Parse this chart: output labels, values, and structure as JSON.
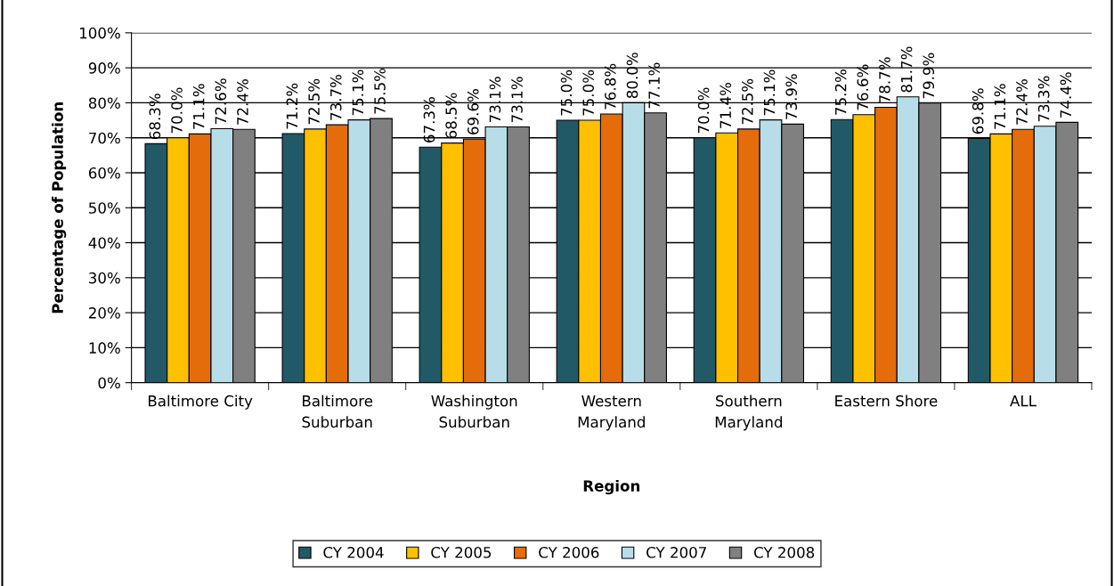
{
  "chart_data": {
    "type": "bar",
    "xlabel": "Region",
    "ylabel": "Percentage of Population",
    "categories": [
      "Baltimore City",
      "Baltimore\nSuburban",
      "Washington\nSuburban",
      "Western\nMaryland",
      "Southern\nMaryland",
      "Eastern Shore",
      "ALL"
    ],
    "series": [
      {
        "name": "CY 2004",
        "color": "#215967",
        "values": [
          68.3,
          71.2,
          67.3,
          75.0,
          70.0,
          75.2,
          69.8
        ],
        "value_labels": [
          "68.3%",
          "71.2%",
          "67.3%",
          "75.0%",
          "70.0%",
          "75.2%",
          "69.8%"
        ]
      },
      {
        "name": "CY 2005",
        "color": "#ffc000",
        "values": [
          70.0,
          72.5,
          68.5,
          75.0,
          71.4,
          76.6,
          71.1
        ],
        "value_labels": [
          "70.0%",
          "72.5%",
          "68.5%",
          "75.0%",
          "71.4%",
          "76.6%",
          "71.1%"
        ]
      },
      {
        "name": "CY 2006",
        "color": "#e46c0a",
        "values": [
          71.1,
          73.7,
          69.6,
          76.8,
          72.5,
          78.7,
          72.4
        ],
        "value_labels": [
          "71.1%",
          "73.7%",
          "69.6%",
          "76.8%",
          "72.5%",
          "78.7%",
          "72.4%"
        ]
      },
      {
        "name": "CY 2007",
        "color": "#b7dee8",
        "values": [
          72.6,
          75.1,
          73.1,
          80.0,
          75.1,
          81.7,
          73.3
        ],
        "value_labels": [
          "72.6%",
          "75.1%",
          "73.1%",
          "80.0%",
          "75.1%",
          "81.7%",
          "73.3%"
        ]
      },
      {
        "name": "CY 2008",
        "color": "#808080",
        "values": [
          72.4,
          75.5,
          73.1,
          77.1,
          73.9,
          79.9,
          74.4
        ],
        "value_labels": [
          "72.4%",
          "75.5%",
          "73.1%",
          "77.1%",
          "73.9%",
          "79.9%",
          "74.4%"
        ]
      }
    ],
    "ylim": [
      0,
      100
    ],
    "yticks": [
      {
        "value": 0,
        "label": "0%"
      },
      {
        "value": 10,
        "label": "10%"
      },
      {
        "value": 20,
        "label": "20%"
      },
      {
        "value": 30,
        "label": "30%"
      },
      {
        "value": 40,
        "label": "40%"
      },
      {
        "value": 50,
        "label": "50%"
      },
      {
        "value": 60,
        "label": "60%"
      },
      {
        "value": 70,
        "label": "70%"
      },
      {
        "value": 80,
        "label": "80%"
      },
      {
        "value": 90,
        "label": "90%"
      },
      {
        "value": 100,
        "label": "100%"
      }
    ],
    "grid": "y",
    "legend": "bottom"
  }
}
